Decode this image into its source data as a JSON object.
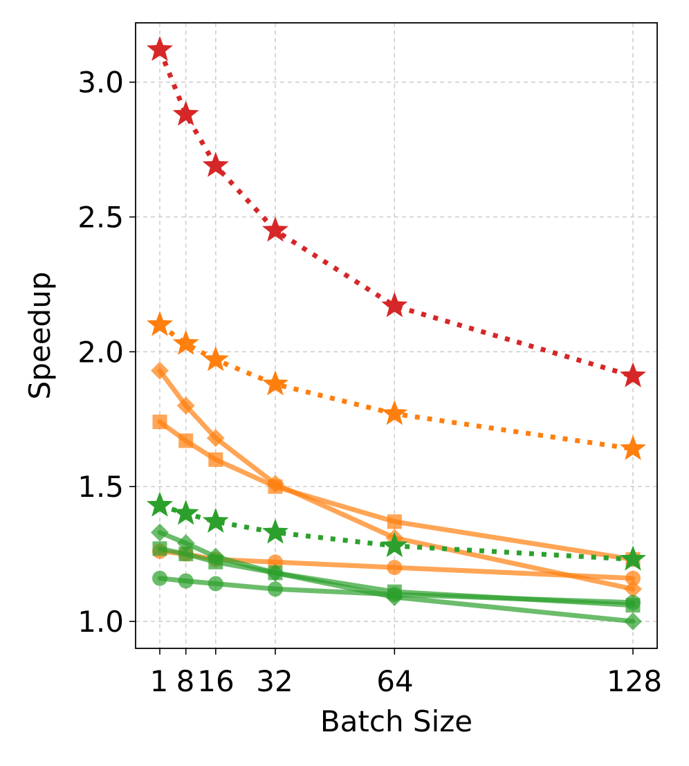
{
  "chart_data": {
    "type": "line",
    "title": "",
    "xlabel": "Batch Size",
    "ylabel": "Speedup",
    "x": [
      1,
      8,
      16,
      32,
      64,
      128
    ],
    "xticks": [
      "1",
      "8",
      "16",
      "32",
      "64",
      "128"
    ],
    "yticks": [
      "1.0",
      "1.5",
      "2.0",
      "2.5",
      "3.0"
    ],
    "ytick_values": [
      1.0,
      1.5,
      2.0,
      2.5,
      3.0
    ],
    "xlim": [
      -5.5,
      134.5
    ],
    "ylim": [
      0.9,
      3.22
    ],
    "grid": true,
    "colors": {
      "red": "#d62728",
      "orange": "#ff7f0e",
      "green": "#2ca02c"
    },
    "series": [
      {
        "name": "red-star",
        "color": "red",
        "marker": "star",
        "linestyle": "dotted",
        "alpha": 1.0,
        "values": [
          3.12,
          2.88,
          2.69,
          2.45,
          2.17,
          1.91
        ]
      },
      {
        "name": "orange-star",
        "color": "orange",
        "marker": "star",
        "linestyle": "dotted",
        "alpha": 1.0,
        "values": [
          2.1,
          2.03,
          1.97,
          1.88,
          1.77,
          1.64
        ]
      },
      {
        "name": "orange-diamond",
        "color": "orange",
        "marker": "diamond",
        "linestyle": "solid",
        "alpha": 0.7,
        "values": [
          1.93,
          1.8,
          1.68,
          1.51,
          1.31,
          1.12
        ]
      },
      {
        "name": "orange-square",
        "color": "orange",
        "marker": "square",
        "linestyle": "solid",
        "alpha": 0.7,
        "values": [
          1.74,
          1.67,
          1.6,
          1.5,
          1.37,
          1.23
        ]
      },
      {
        "name": "orange-circle",
        "color": "orange",
        "marker": "circle",
        "linestyle": "solid",
        "alpha": 0.7,
        "values": [
          1.26,
          1.25,
          1.23,
          1.22,
          1.2,
          1.16
        ]
      },
      {
        "name": "green-star",
        "color": "green",
        "marker": "star",
        "linestyle": "dotted",
        "alpha": 1.0,
        "values": [
          1.43,
          1.4,
          1.37,
          1.33,
          1.28,
          1.23
        ]
      },
      {
        "name": "green-diamond",
        "color": "green",
        "marker": "diamond",
        "linestyle": "solid",
        "alpha": 0.7,
        "values": [
          1.33,
          1.29,
          1.24,
          1.18,
          1.09,
          1.0
        ]
      },
      {
        "name": "green-square",
        "color": "green",
        "marker": "square",
        "linestyle": "solid",
        "alpha": 0.7,
        "values": [
          1.27,
          1.25,
          1.22,
          1.18,
          1.11,
          1.06
        ]
      },
      {
        "name": "green-circle",
        "color": "green",
        "marker": "circle",
        "linestyle": "solid",
        "alpha": 0.7,
        "values": [
          1.16,
          1.15,
          1.14,
          1.12,
          1.1,
          1.07
        ]
      }
    ]
  }
}
